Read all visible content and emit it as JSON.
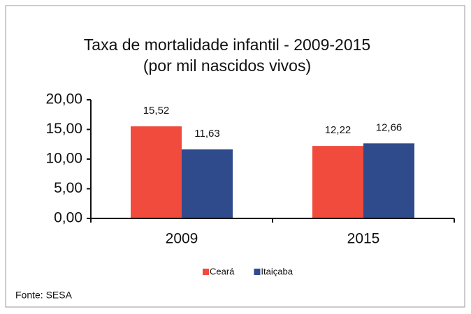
{
  "chart_data": {
    "type": "bar",
    "title": "Taxa de mortalidade infantil - 2009-2015",
    "subtitle": "(por mil nascidos vivos)",
    "categories": [
      "2009",
      "2015"
    ],
    "series": [
      {
        "name": "Ceará",
        "color": "#f04b3c",
        "values": [
          15.52,
          12.22
        ],
        "value_labels": [
          "15,52",
          "12,22"
        ]
      },
      {
        "name": "Itaiçaba",
        "color": "#2f4b8c",
        "values": [
          11.63,
          12.66
        ],
        "value_labels": [
          "11,63",
          "12,66"
        ]
      }
    ],
    "ylim": [
      0,
      20
    ],
    "yticks": [
      {
        "value": 0,
        "label": "0,00"
      },
      {
        "value": 5,
        "label": "5,00"
      },
      {
        "value": 10,
        "label": "10,00"
      },
      {
        "value": 15,
        "label": "15,00"
      },
      {
        "value": 20,
        "label": "20,00"
      }
    ],
    "grid": false,
    "legend": "bottom",
    "source": "Fonte: SESA"
  }
}
